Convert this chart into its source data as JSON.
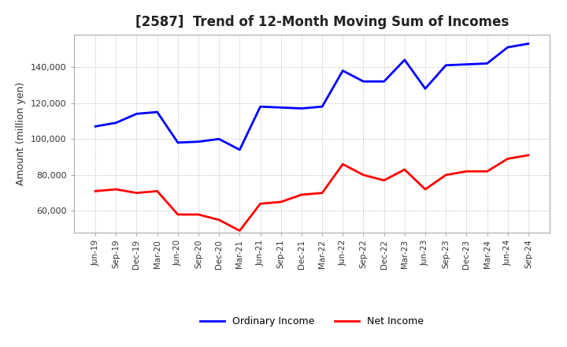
{
  "title": "[2587]  Trend of 12-Month Moving Sum of Incomes",
  "ylabel": "Amount (million yen)",
  "ylim": [
    48000,
    158000
  ],
  "yticks": [
    60000,
    80000,
    100000,
    120000,
    140000
  ],
  "legend_labels": [
    "Ordinary Income",
    "Net Income"
  ],
  "line_colors": [
    "blue",
    "red"
  ],
  "x_labels": [
    "Jun-19",
    "Sep-19",
    "Dec-19",
    "Mar-20",
    "Jun-20",
    "Sep-20",
    "Dec-20",
    "Mar-21",
    "Jun-21",
    "Sep-21",
    "Dec-21",
    "Mar-22",
    "Jun-22",
    "Sep-22",
    "Dec-22",
    "Mar-23",
    "Jun-23",
    "Sep-23",
    "Dec-23",
    "Mar-24",
    "Jun-24",
    "Sep-24"
  ],
  "ordinary_income": [
    107000,
    109000,
    114000,
    115000,
    98000,
    98500,
    100000,
    94000,
    118000,
    117500,
    117000,
    118000,
    138000,
    132000,
    132000,
    144000,
    128000,
    141000,
    141500,
    142000,
    151000,
    153000
  ],
  "net_income": [
    71000,
    72000,
    70000,
    71000,
    58000,
    58000,
    55000,
    49000,
    64000,
    65000,
    69000,
    70000,
    86000,
    80000,
    77000,
    83000,
    72000,
    80000,
    82000,
    82000,
    89000,
    91000
  ]
}
